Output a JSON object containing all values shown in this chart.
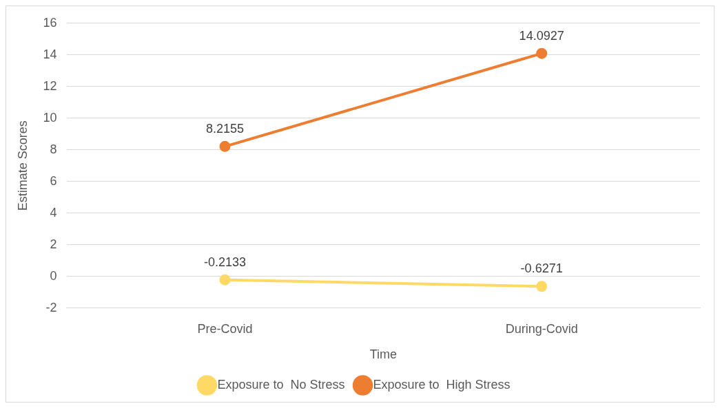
{
  "chart_data": {
    "type": "line",
    "xlabel": "Time",
    "ylabel": "Estimate Scores",
    "categories": [
      "Pre-Covid",
      "During-Covid"
    ],
    "series": [
      {
        "name": "Exposure to  No Stress",
        "color": "#ffd966",
        "values": [
          -0.2133,
          -0.6271
        ]
      },
      {
        "name": "Exposure to  High Stress",
        "color": "#ed7d31",
        "values": [
          8.2155,
          14.0927
        ]
      }
    ],
    "ylim": [
      -2,
      16
    ],
    "yticks": [
      -2,
      0,
      2,
      4,
      6,
      8,
      10,
      12,
      14,
      16
    ],
    "grid": "y",
    "legend": "bottom",
    "marker": "circle",
    "line_style": "solid",
    "data_labels": true
  }
}
